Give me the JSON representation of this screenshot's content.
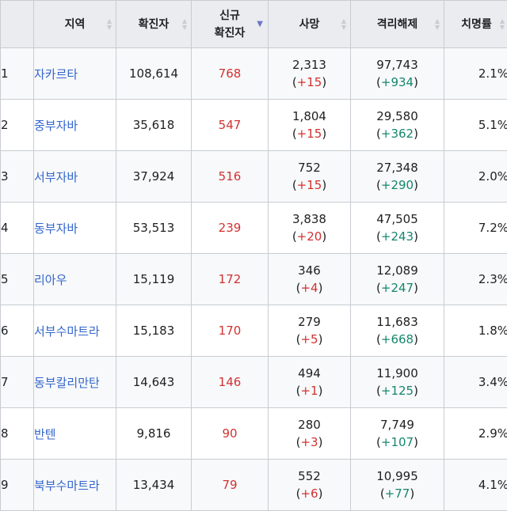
{
  "headers": {
    "region": "지역",
    "confirmed": "확진자",
    "new_line1": "신규",
    "new_line2": "확진자",
    "deaths": "사망",
    "released": "격리해제",
    "fatality": "치명률"
  },
  "colors": {
    "link": "#3366cc",
    "increase_red": "#d33131",
    "increase_green": "#14866d",
    "header_bg": "#eaecf0",
    "sort_active": "#6b76c9"
  },
  "rows": [
    {
      "rank": "1",
      "region": "자카르타",
      "confirmed": "108,614",
      "new": "768",
      "deaths": "2,313",
      "deaths_delta": "+15",
      "released": "97,743",
      "released_delta": "+934",
      "fatality": "2.1%"
    },
    {
      "rank": "2",
      "region": "중부자바",
      "confirmed": "35,618",
      "new": "547",
      "deaths": "1,804",
      "deaths_delta": "+15",
      "released": "29,580",
      "released_delta": "+362",
      "fatality": "5.1%"
    },
    {
      "rank": "3",
      "region": "서부자바",
      "confirmed": "37,924",
      "new": "516",
      "deaths": "752",
      "deaths_delta": "+15",
      "released": "27,348",
      "released_delta": "+290",
      "fatality": "2.0%"
    },
    {
      "rank": "4",
      "region": "동부자바",
      "confirmed": "53,513",
      "new": "239",
      "deaths": "3,838",
      "deaths_delta": "+20",
      "released": "47,505",
      "released_delta": "+243",
      "fatality": "7.2%"
    },
    {
      "rank": "5",
      "region": "리아우",
      "confirmed": "15,119",
      "new": "172",
      "deaths": "346",
      "deaths_delta": "+4",
      "released": "12,089",
      "released_delta": "+247",
      "fatality": "2.3%"
    },
    {
      "rank": "6",
      "region": "서부수마트라",
      "confirmed": "15,183",
      "new": "170",
      "deaths": "279",
      "deaths_delta": "+5",
      "released": "11,683",
      "released_delta": "+668",
      "fatality": "1.8%"
    },
    {
      "rank": "7",
      "region": "동부칼리만탄",
      "confirmed": "14,643",
      "new": "146",
      "deaths": "494",
      "deaths_delta": "+1",
      "released": "11,900",
      "released_delta": "+125",
      "fatality": "3.4%"
    },
    {
      "rank": "8",
      "region": "반텐",
      "confirmed": "9,816",
      "new": "90",
      "deaths": "280",
      "deaths_delta": "+3",
      "released": "7,749",
      "released_delta": "+107",
      "fatality": "2.9%"
    },
    {
      "rank": "9",
      "region": "북부수마트라",
      "confirmed": "13,434",
      "new": "79",
      "deaths": "552",
      "deaths_delta": "+6",
      "released": "10,995",
      "released_delta": "+77",
      "fatality": "4.1%"
    }
  ]
}
